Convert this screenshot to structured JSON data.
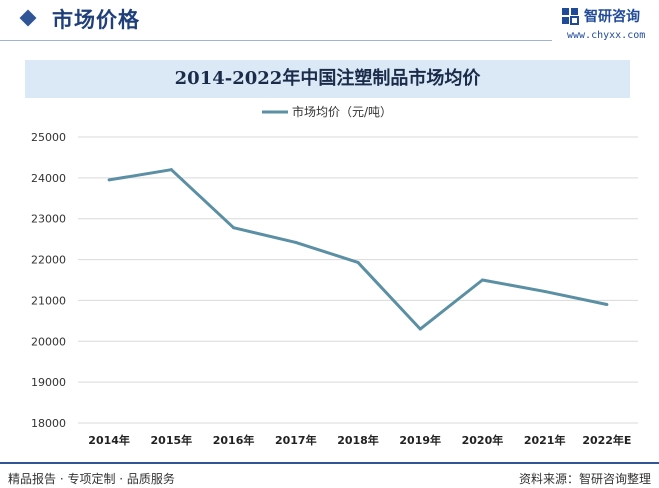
{
  "header": {
    "section_title": "市场价格",
    "brand": "智研咨询",
    "website": "www.chyxx.com",
    "accent_color": "#2f5597"
  },
  "chart_data": {
    "type": "line",
    "title": "2014-2022年中国注塑制品市场均价",
    "categories": [
      "2014年",
      "2015年",
      "2016年",
      "2017年",
      "2018年",
      "2019年",
      "2020年",
      "2021年",
      "2022年E"
    ],
    "series": [
      {
        "name": "市场均价（元/吨）",
        "values": [
          23950,
          24200,
          22780,
          22420,
          21930,
          20300,
          21500,
          21220,
          20900
        ],
        "color": "#5b8fa3"
      }
    ],
    "yticks": [
      18000,
      19000,
      20000,
      21000,
      22000,
      23000,
      24000,
      25000
    ],
    "ylim": [
      18000,
      25000
    ],
    "grid": true,
    "legend_position": "top-center"
  },
  "footer": {
    "left": "精品报告 · 专项定制 · 品质服务",
    "right": "资料来源：智研咨询整理"
  }
}
